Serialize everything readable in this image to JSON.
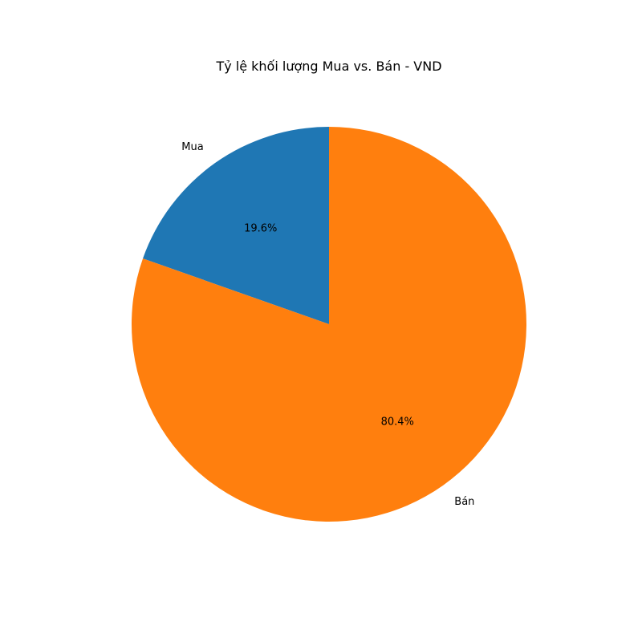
{
  "chart_data": {
    "type": "pie",
    "title": "Tỷ lệ khối lượng Mua vs. Bán - VND",
    "categories": [
      "Mua",
      "Bán"
    ],
    "values": [
      19.6,
      80.4
    ],
    "value_labels": [
      "19.6%",
      "80.4%"
    ],
    "colors": [
      "#1f77b4",
      "#ff7f0e"
    ],
    "start_angle_deg": 90,
    "direction": "counterclockwise",
    "legend": "none"
  }
}
